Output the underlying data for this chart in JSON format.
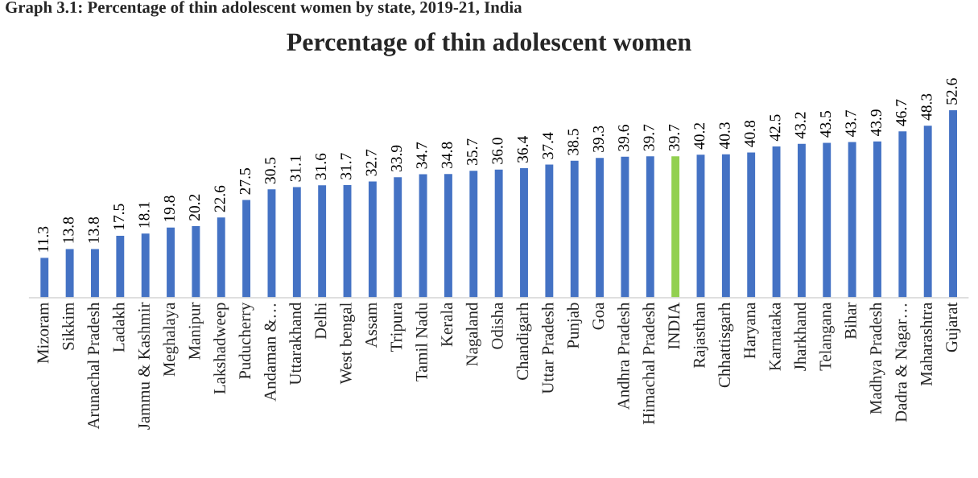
{
  "chart_data": {
    "type": "bar",
    "title": "Percentage of thin adolescent women",
    "annotations": [
      "Graph 3.1: Percentage of thin adolescent women by state, 2019-21, India"
    ],
    "categories": [
      "Mizoram",
      "Sikkim",
      "Arunachal Pradesh",
      "Ladakh",
      "Jammu & Kashmir",
      "Meghalaya",
      "Manipur",
      "Lakshadweep",
      "Puducherry",
      "Andaman &…",
      "Uttarakhand",
      "Delhi",
      "West bengal",
      "Assam",
      "Tripura",
      "Tamil Nadu",
      "Kerala",
      "Nagaland",
      "Odisha",
      "Chandigarh",
      "Uttar Pradesh",
      "Punjab",
      "Goa",
      "Andhra Pradesh",
      "Himachal Pradesh",
      "INDIA",
      "Rajasthan",
      "Chhattisgarh",
      "Haryana",
      "Karnataka",
      "Jharkhand",
      "Telangana",
      "Bihar",
      "Madhya Pradesh",
      "Dadra & Nagar…",
      "Maharashtra",
      "Gujarat"
    ],
    "values": [
      11.3,
      13.8,
      13.8,
      17.5,
      18.1,
      19.8,
      20.2,
      22.6,
      27.5,
      30.5,
      31.1,
      31.6,
      31.7,
      32.7,
      33.9,
      34.7,
      34.8,
      35.7,
      36.0,
      36.4,
      37.4,
      38.5,
      39.3,
      39.6,
      39.7,
      39.7,
      40.2,
      40.3,
      40.8,
      42.5,
      43.2,
      43.5,
      43.7,
      43.9,
      46.7,
      48.3,
      52.6
    ],
    "value_labels": [
      "11.3",
      "13.8",
      "13.8",
      "17.5",
      "18.1",
      "19.8",
      "20.2",
      "22.6",
      "27.5",
      "30.5",
      "31.1",
      "31.6",
      "31.7",
      "32.7",
      "33.9",
      "34.7",
      "34.8",
      "35.7",
      "36.0",
      "36.4",
      "37.4",
      "38.5",
      "39.3",
      "39.6",
      "39.7",
      "39.7",
      "40.2",
      "40.3",
      "40.8",
      "42.5",
      "43.2",
      "43.5",
      "43.7",
      "43.9",
      "46.7",
      "48.3",
      "52.6"
    ],
    "colors": [
      "#4472c4",
      "#4472c4",
      "#4472c4",
      "#4472c4",
      "#4472c4",
      "#4472c4",
      "#4472c4",
      "#4472c4",
      "#4472c4",
      "#4472c4",
      "#4472c4",
      "#4472c4",
      "#4472c4",
      "#4472c4",
      "#4472c4",
      "#4472c4",
      "#4472c4",
      "#4472c4",
      "#4472c4",
      "#4472c4",
      "#4472c4",
      "#4472c4",
      "#4472c4",
      "#4472c4",
      "#4472c4",
      "#92d050",
      "#4472c4",
      "#4472c4",
      "#4472c4",
      "#4472c4",
      "#4472c4",
      "#4472c4",
      "#4472c4",
      "#4472c4",
      "#4472c4",
      "#4472c4",
      "#4472c4"
    ],
    "grid": false,
    "legend": false
  }
}
